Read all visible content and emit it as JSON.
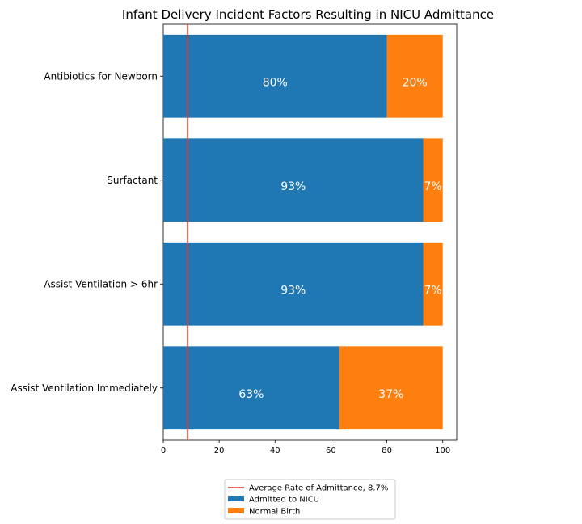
{
  "chart_data": {
    "type": "bar",
    "orientation": "horizontal",
    "stacked": true,
    "title": "Infant Delivery Incident Factors Resulting in NICU Admittance",
    "xlabel": "",
    "ylabel": "",
    "xlim": [
      0,
      105
    ],
    "xticks": [
      "0",
      "20",
      "40",
      "60",
      "80",
      "100"
    ],
    "categories": [
      "Antibiotics for Newborn",
      "Surfactant",
      "Assist Ventilation > 6hr",
      "Assist Ventilation Immediately"
    ],
    "series": [
      {
        "name": "Admitted to NICU",
        "color": "#1f77b4",
        "values": [
          80,
          93,
          93,
          63
        ],
        "labels": [
          "80%",
          "93%",
          "93%",
          "63%"
        ]
      },
      {
        "name": "Normal Birth",
        "color": "#ff7f0e",
        "values": [
          20,
          7,
          7,
          37
        ],
        "labels": [
          "20%",
          "7%",
          "7%",
          "37%"
        ]
      }
    ],
    "reference_line": {
      "name": " Average Rate of Admittance, 8.7%",
      "value": 8.7,
      "color": "#e8392b"
    },
    "legend": {
      "placement": "bottom-center",
      "entries": [
        " Average Rate of Admittance, 8.7%",
        "Admitted to NICU",
        "Normal Birth"
      ]
    },
    "grid": false
  }
}
